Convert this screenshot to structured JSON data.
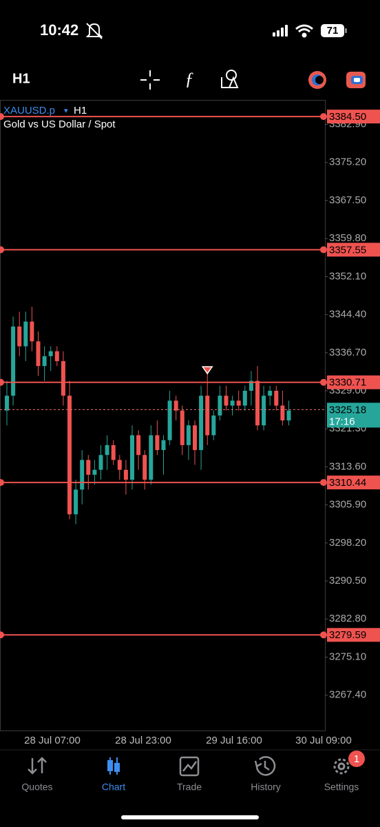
{
  "status_bar": {
    "time": "10:42",
    "battery": "71"
  },
  "toolbar": {
    "timeframe": "H1"
  },
  "chart_data": {
    "type": "candlestick",
    "symbol": "XAUUSD.p",
    "symbol_menu": "▾",
    "timeframe": "H1",
    "title": "Gold vs US Dollar / Spot",
    "up_color": "#26a69a",
    "down_color": "#ef5350",
    "open": [
      3325,
      3328,
      3342,
      3338,
      3343,
      3339,
      3334,
      3336,
      3337,
      3335,
      3328,
      3304,
      3309,
      3315,
      3312,
      3313,
      3316,
      3318,
      3315,
      3313,
      3311,
      3320,
      3316,
      3311,
      3320,
      3317,
      3319,
      3327,
      3325,
      3318,
      3322,
      3317,
      3328,
      3320,
      3324,
      3328,
      3326,
      3327,
      3326,
      3329,
      3331,
      3322,
      3328,
      3329,
      3326,
      3323
    ],
    "high": [
      3331,
      3344,
      3345,
      3345,
      3346,
      3341,
      3338,
      3338,
      3338,
      3337,
      3331,
      3311,
      3317,
      3316,
      3315,
      3318,
      3320,
      3319,
      3316,
      3315,
      3322,
      3321,
      3317,
      3322,
      3323,
      3320,
      3329,
      3328,
      3326,
      3323,
      3323,
      3330,
      3334,
      3325,
      3330,
      3330,
      3328,
      3329,
      3330,
      3333,
      3334,
      3330,
      3330,
      3330,
      3329,
      3327
    ],
    "low": [
      3322,
      3326,
      3336,
      3335,
      3337,
      3332,
      3331,
      3333,
      3334,
      3326,
      3303,
      3302,
      3306,
      3309,
      3310,
      3311,
      3313,
      3314,
      3311,
      3308,
      3309,
      3313,
      3309,
      3310,
      3316,
      3312,
      3318,
      3323,
      3316,
      3315,
      3314,
      3313,
      3318,
      3319,
      3323,
      3325,
      3324,
      3325,
      3325,
      3326,
      3321,
      3321,
      3326,
      3325,
      3322,
      3322
    ],
    "close": [
      3328,
      3342,
      3338,
      3343,
      3339,
      3334,
      3336,
      3337,
      3335,
      3328,
      3304,
      3309,
      3315,
      3312,
      3313,
      3316,
      3318,
      3315,
      3313,
      3311,
      3320,
      3316,
      3311,
      3320,
      3317,
      3319,
      3327,
      3325,
      3318,
      3322,
      3317,
      3328,
      3320,
      3324,
      3328,
      3326,
      3327,
      3326,
      3329,
      3331,
      3322,
      3328,
      3329,
      3326,
      3323,
      3325
    ],
    "ylim": [
      3260.24,
      3387.86
    ],
    "yticks": [
      {
        "value": 3382.9,
        "label": "3382.90"
      },
      {
        "value": 3375.2,
        "label": "3375.20"
      },
      {
        "value": 3367.5,
        "label": "3367.50"
      },
      {
        "value": 3359.8,
        "label": "3359.80"
      },
      {
        "value": 3352.1,
        "label": "3352.10"
      },
      {
        "value": 3344.4,
        "label": "3344.40"
      },
      {
        "value": 3336.7,
        "label": "3336.70"
      },
      {
        "value": 3329,
        "label": "3329.00"
      },
      {
        "value": 3321.3,
        "label": "3321.30"
      },
      {
        "value": 3313.6,
        "label": "3313.60"
      },
      {
        "value": 3305.9,
        "label": "3305.90"
      },
      {
        "value": 3298.2,
        "label": "3298.20"
      },
      {
        "value": 3290.5,
        "label": "3290.50"
      },
      {
        "value": 3282.8,
        "label": "3282.80"
      },
      {
        "value": 3275.1,
        "label": "3275.10"
      },
      {
        "value": 3267.4,
        "label": "3267.40"
      }
    ],
    "levels": [
      {
        "value": 3384.5,
        "label": "3384.50"
      },
      3357.55,
      3330.71,
      3310.44,
      3279.59
    ],
    "current_price": 3325.18,
    "countdown": "17:16",
    "x_labels": [
      "28 Jul 07:00",
      "28 Jul 23:00",
      "29 Jul 16:00",
      "30 Jul 09:00"
    ]
  },
  "nav": {
    "items": [
      "Quotes",
      "Chart",
      "Trade",
      "History",
      "Settings"
    ],
    "badge": "1"
  }
}
